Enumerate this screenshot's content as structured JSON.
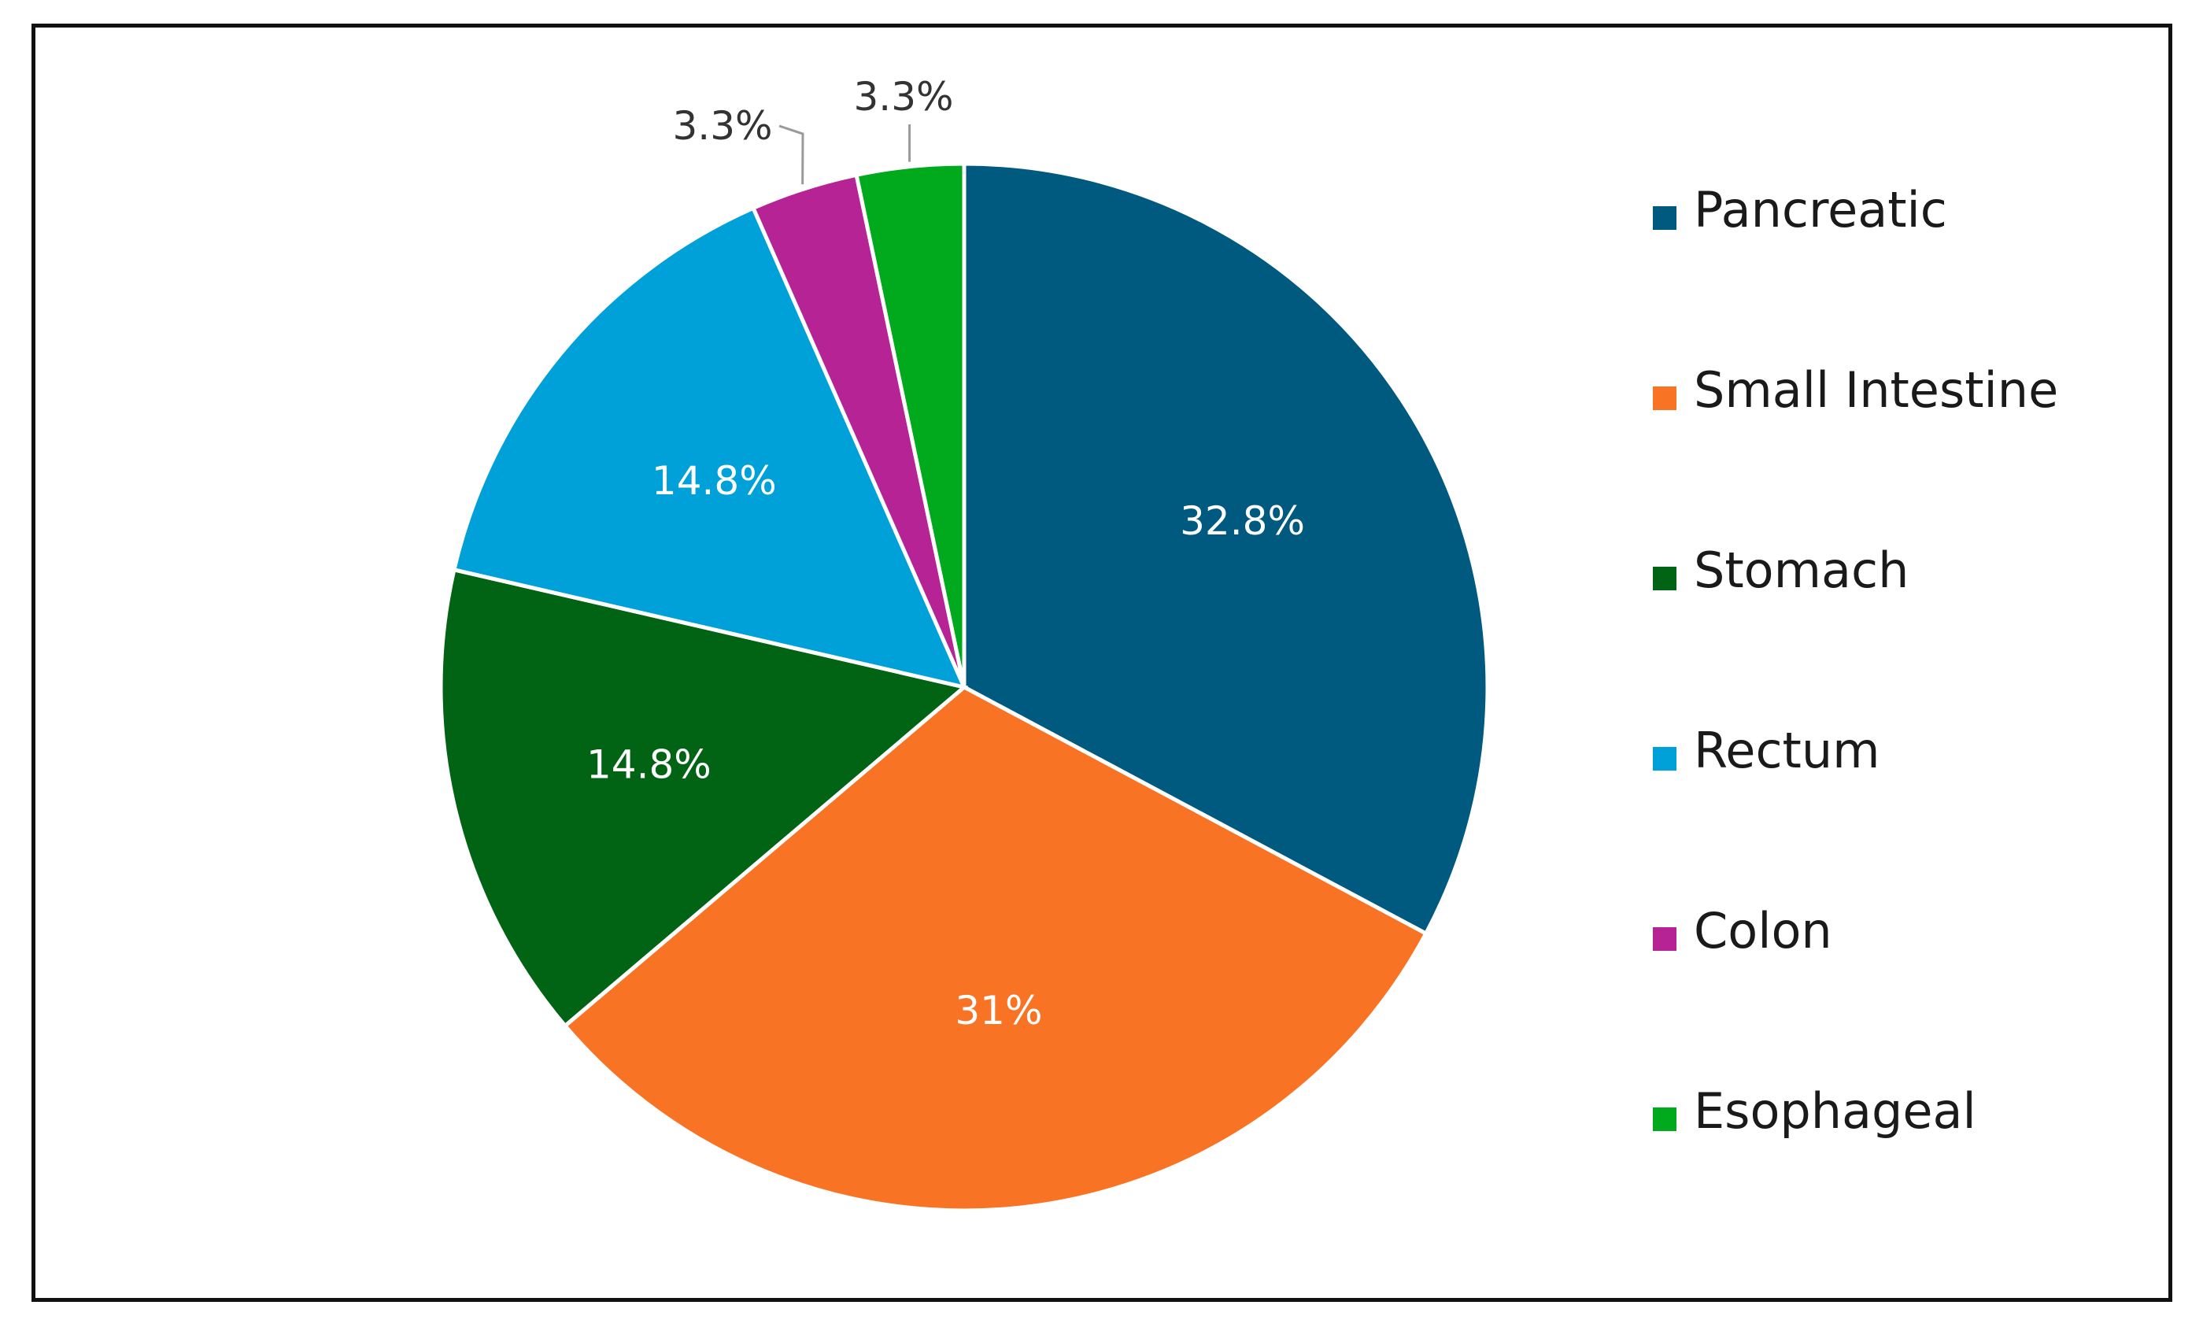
{
  "chart_data": {
    "type": "pie",
    "slices": [
      {
        "name": "Pancreatic",
        "value": 32.8,
        "label": "32.8%",
        "color": "#005a80",
        "label_placement": "inside"
      },
      {
        "name": "Small Intestine",
        "value": 31,
        "label": "31%",
        "color": "#f97325",
        "label_placement": "inside"
      },
      {
        "name": "Stomach",
        "value": 14.8,
        "label": "14.8%",
        "color": "#006414",
        "label_placement": "inside"
      },
      {
        "name": "Rectum",
        "value": 14.8,
        "label": "14.8%",
        "color": "#00a0d8",
        "label_placement": "inside"
      },
      {
        "name": "Colon",
        "value": 3.3,
        "label": "3.3%",
        "color": "#b52394",
        "label_placement": "outside"
      },
      {
        "name": "Esophageal",
        "value": 3.3,
        "label": "3.3%",
        "color": "#00aa1c",
        "label_placement": "outside"
      }
    ],
    "legend": {
      "position": "right"
    },
    "start_angle": "12 o'clock",
    "direction": "clockwise"
  }
}
